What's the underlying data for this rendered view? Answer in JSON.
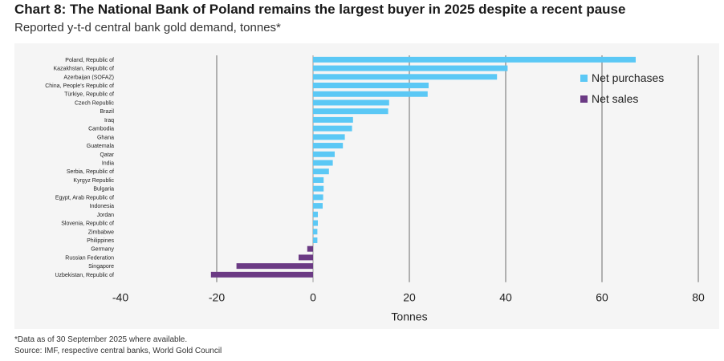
{
  "header": {
    "title": "Chart 8: The National Bank of Poland remains the largest buyer in 2025 despite a recent pause",
    "subtitle": "Reported y-t-d central bank gold demand, tonnes*"
  },
  "footer": {
    "footnote": "*Data as of 30 September 2025 where available.",
    "source": "Source: IMF, respective central banks, World Gold Council"
  },
  "colors": {
    "positive": "#5bc8f5",
    "negative": "#6b3a84",
    "grid": "#999999"
  },
  "chart_data": {
    "type": "bar",
    "orientation": "horizontal",
    "xlabel": "Tonnes",
    "ylabel": "",
    "xlim": [
      -40,
      80
    ],
    "xticks": [
      -40,
      -20,
      0,
      20,
      40,
      60,
      80
    ],
    "grid": true,
    "legend_position": "top-right",
    "legend": [
      {
        "label": "Net purchases",
        "color": "#5bc8f5"
      },
      {
        "label": "Net sales",
        "color": "#6b3a84"
      }
    ],
    "categories": [
      "Poland, Republic of",
      "Kazakhstan, Republic of",
      "Azerbaijan (SOFAZ)",
      "China, People's Republic of",
      "Türkiye, Republic of",
      "Czech Republic",
      "Brazil",
      "Iraq",
      "Cambodia",
      "Ghana",
      "Guatemala",
      "Qatar",
      "India",
      "Serbia, Republic of",
      "Kyrgyz Republic",
      "Bulgaria",
      "Egypt, Arab Republic of",
      "Indonesia",
      "Jordan",
      "Slovenia, Republic of",
      "Zimbabwe",
      "Philippines",
      "Germany",
      "Russian Federation",
      "Singapore",
      "Uzbekistan, Republic of"
    ],
    "values": [
      67,
      40.4,
      38.2,
      24,
      23.8,
      15.8,
      15.6,
      8.3,
      8.1,
      6.6,
      6.2,
      4.5,
      4.1,
      3.3,
      2.2,
      2.2,
      2.1,
      2.0,
      1.0,
      1.0,
      0.9,
      0.9,
      -1.2,
      -3.0,
      -15.9,
      -21.2
    ]
  }
}
